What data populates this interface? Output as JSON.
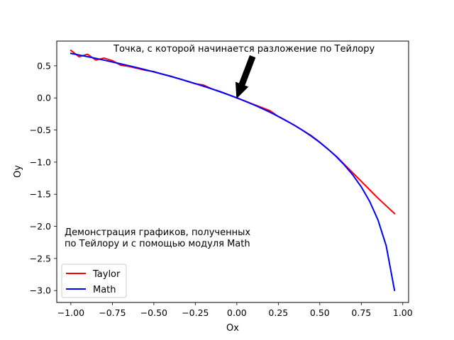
{
  "chart_data": {
    "type": "line",
    "xlabel": "Ox",
    "ylabel": "Oy",
    "xlim": [
      -1.085,
      1.035
    ],
    "ylim": [
      -3.185,
      0.885
    ],
    "xticks": [
      "−1.00",
      "−0.75",
      "−0.50",
      "−0.25",
      "0.00",
      "0.25",
      "0.50",
      "0.75",
      "1.00"
    ],
    "xtick_values": [
      -1.0,
      -0.75,
      -0.5,
      -0.25,
      0.0,
      0.25,
      0.5,
      0.75,
      1.0
    ],
    "yticks": [
      "0.5",
      "0.0",
      "−0.5",
      "−1.0",
      "−1.5",
      "−2.0",
      "−2.5",
      "−3.0"
    ],
    "ytick_values": [
      0.5,
      0.0,
      -0.5,
      -1.0,
      -1.5,
      -2.0,
      -2.5,
      -3.0
    ],
    "grid": false,
    "legend_position": "lower-left",
    "series": [
      {
        "name": "Taylor",
        "color": "#ff0000",
        "x": [
          -1.0,
          -0.95,
          -0.9,
          -0.85,
          -0.8,
          -0.75,
          -0.7,
          -0.65,
          -0.6,
          -0.55,
          -0.5,
          -0.45,
          -0.4,
          -0.35,
          -0.3,
          -0.25,
          -0.2,
          -0.15,
          -0.1,
          -0.05,
          0.0,
          0.05,
          0.1,
          0.15,
          0.2,
          0.25,
          0.3,
          0.35,
          0.4,
          0.45,
          0.5,
          0.55,
          0.6,
          0.65,
          0.7,
          0.75,
          0.8,
          0.85,
          0.9,
          0.95
        ],
        "y": [
          0.74,
          0.64,
          0.68,
          0.59,
          0.62,
          0.58,
          0.51,
          0.49,
          0.46,
          0.43,
          0.41,
          0.37,
          0.34,
          0.3,
          0.26,
          0.22,
          0.2,
          0.14,
          0.1,
          0.05,
          0.0,
          -0.05,
          -0.1,
          -0.15,
          -0.2,
          -0.29,
          -0.36,
          -0.43,
          -0.51,
          -0.59,
          -0.69,
          -0.8,
          -0.91,
          -1.04,
          -1.17,
          -1.3,
          -1.43,
          -1.56,
          -1.68,
          -1.8
        ]
      },
      {
        "name": "Math",
        "color": "#0000ff",
        "x": [
          -1.0,
          -0.95,
          -0.9,
          -0.85,
          -0.8,
          -0.75,
          -0.7,
          -0.65,
          -0.6,
          -0.55,
          -0.5,
          -0.45,
          -0.4,
          -0.35,
          -0.3,
          -0.25,
          -0.2,
          -0.15,
          -0.1,
          -0.05,
          0.0,
          0.05,
          0.1,
          0.15,
          0.2,
          0.25,
          0.3,
          0.35,
          0.4,
          0.45,
          0.5,
          0.55,
          0.6,
          0.65,
          0.7,
          0.75,
          0.8,
          0.85,
          0.9,
          0.95
        ],
        "y": [
          0.693,
          0.668,
          0.642,
          0.616,
          0.588,
          0.56,
          0.531,
          0.501,
          0.47,
          0.438,
          0.405,
          0.372,
          0.336,
          0.3,
          0.262,
          0.223,
          0.182,
          0.14,
          0.095,
          0.049,
          0.0,
          -0.051,
          -0.105,
          -0.163,
          -0.223,
          -0.288,
          -0.357,
          -0.431,
          -0.511,
          -0.598,
          -0.693,
          -0.799,
          -0.916,
          -1.05,
          -1.204,
          -1.386,
          -1.609,
          -1.897,
          -2.303,
          -2.996
        ]
      }
    ],
    "annotations": {
      "arrow_label": "Точка, с которой начинается разложение по Тейлору",
      "arrow_target": [
        0.0,
        0.0
      ],
      "description_line1": "Демонстрация графиков, полученных",
      "description_line2": "по Тейлору и с помощью модуля Math"
    }
  }
}
